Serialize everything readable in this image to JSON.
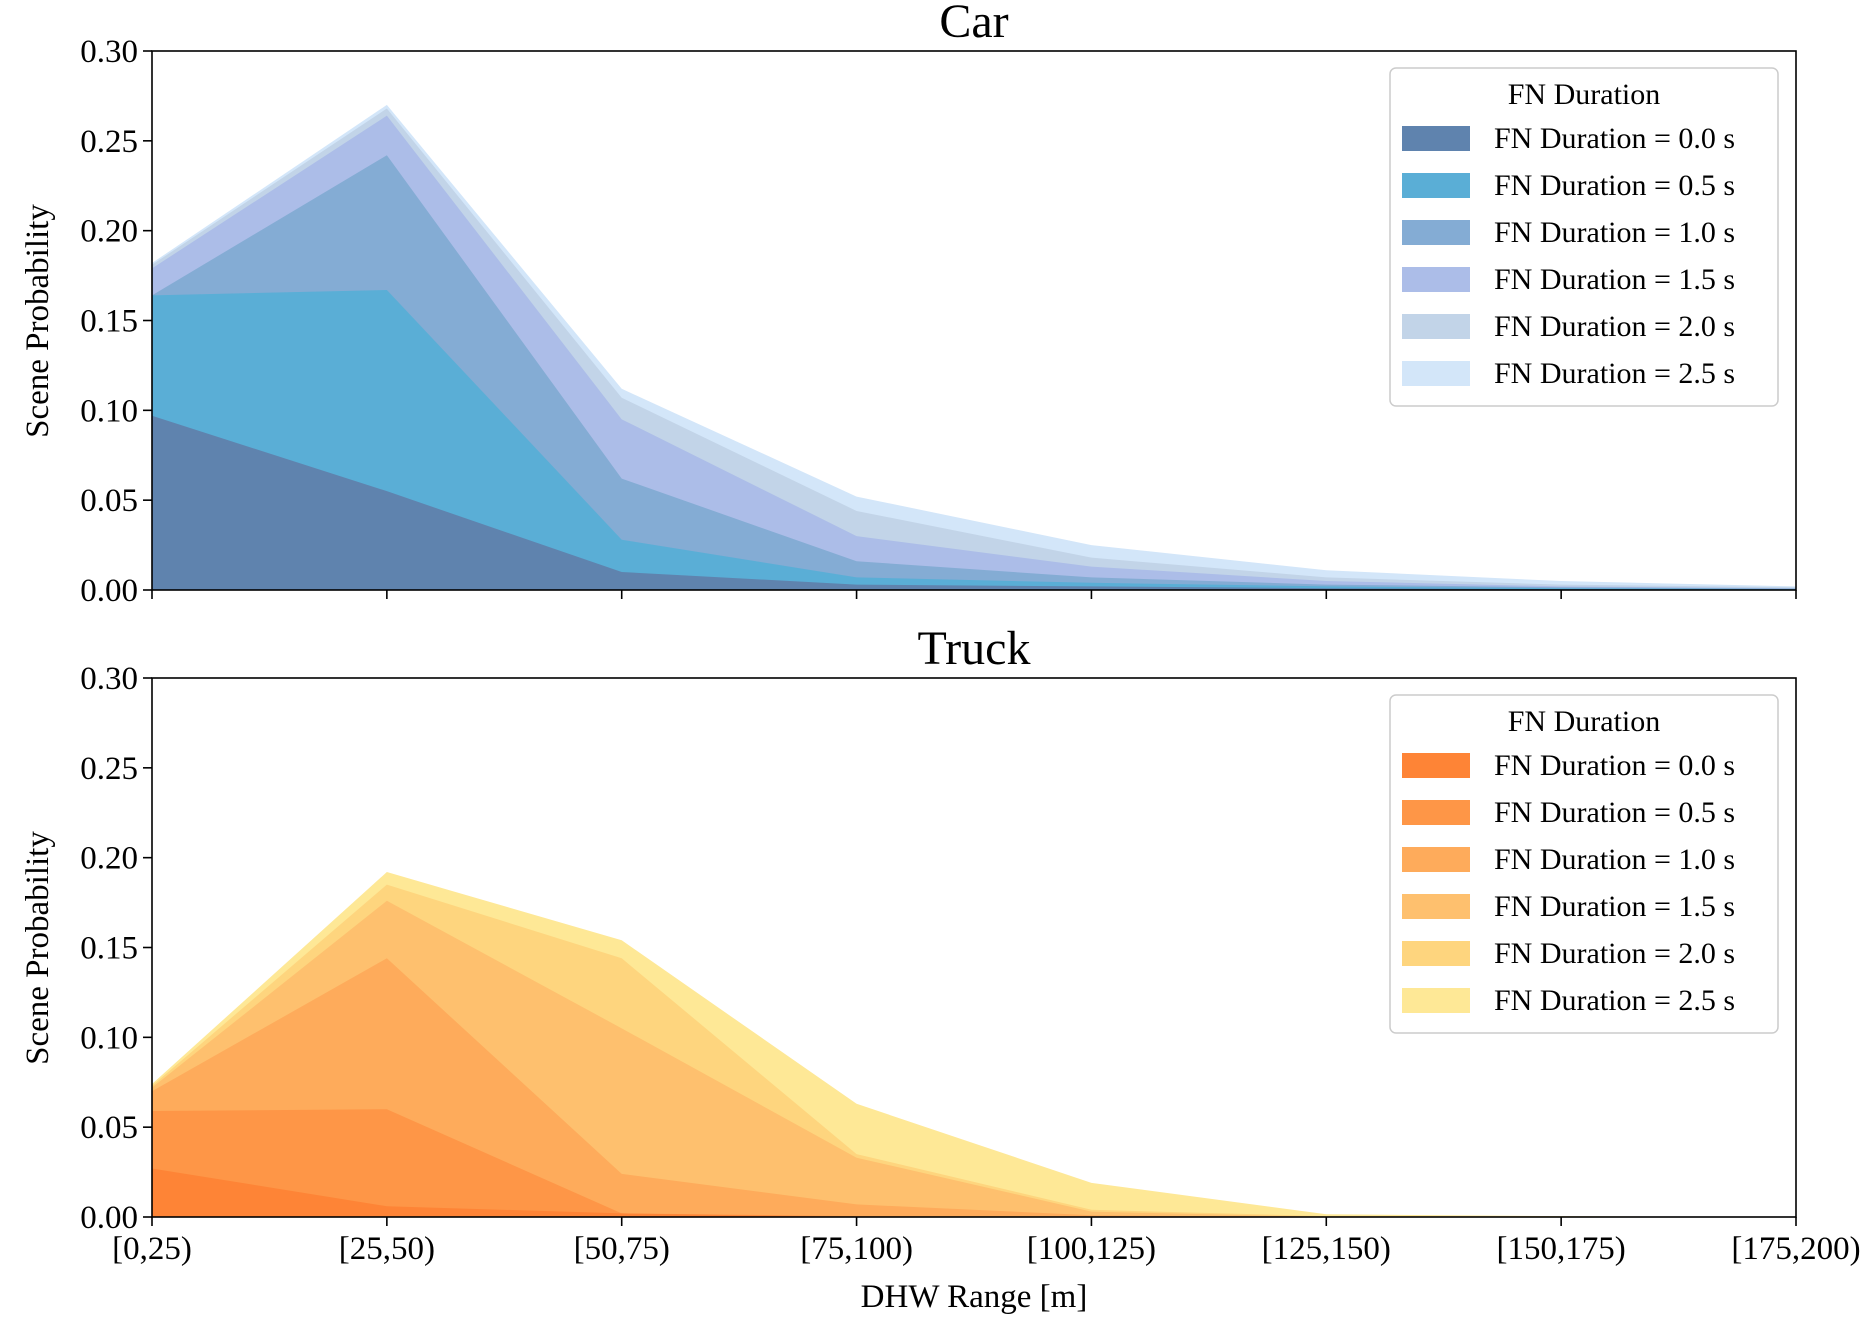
{
  "chart_data": [
    {
      "type": "area",
      "stacking": "overlapping (cumulative)",
      "title": "Car",
      "xlabel": "",
      "ylabel": "Scene Probability",
      "ylim": [
        0,
        0.3
      ],
      "yticks": [
        "0.00",
        "0.05",
        "0.10",
        "0.15",
        "0.20",
        "0.25",
        "0.30"
      ],
      "categories": [
        "[0,25)",
        "[25,50)",
        "[50,75)",
        "[75,100)",
        "[100,125)",
        "[125,150)",
        "[150,175)",
        "[175,200)"
      ],
      "legend": {
        "title": "FN Duration",
        "position": "upper right"
      },
      "series": [
        {
          "name": "FN Duration = 0.0 s",
          "color": "#5f83ae",
          "values": [
            0.097,
            0.055,
            0.01,
            0.003,
            0.002,
            0.001,
            0.0005,
            0.0003
          ]
        },
        {
          "name": "FN Duration = 0.5 s",
          "color": "#5aaed6",
          "values": [
            0.164,
            0.167,
            0.028,
            0.007,
            0.004,
            0.002,
            0.001,
            0.0005
          ]
        },
        {
          "name": "FN Duration = 1.0 s",
          "color": "#84acd4",
          "values": [
            0.164,
            0.242,
            0.062,
            0.016,
            0.007,
            0.003,
            0.0015,
            0.0008
          ]
        },
        {
          "name": "FN Duration = 1.5 s",
          "color": "#acbde8",
          "values": [
            0.179,
            0.264,
            0.095,
            0.03,
            0.013,
            0.005,
            0.002,
            0.001
          ]
        },
        {
          "name": "FN Duration = 2.0 s",
          "color": "#c2d4e8",
          "values": [
            0.181,
            0.268,
            0.107,
            0.044,
            0.018,
            0.007,
            0.003,
            0.0015
          ]
        },
        {
          "name": "FN Duration = 2.5 s",
          "color": "#d3e6f9",
          "values": [
            0.182,
            0.27,
            0.112,
            0.052,
            0.025,
            0.011,
            0.005,
            0.002
          ]
        }
      ]
    },
    {
      "type": "area",
      "stacking": "overlapping (cumulative)",
      "title": "Truck",
      "xlabel": "DHW Range [m]",
      "ylabel": "Scene Probability",
      "ylim": [
        0,
        0.3
      ],
      "yticks": [
        "0.00",
        "0.05",
        "0.10",
        "0.15",
        "0.20",
        "0.25",
        "0.30"
      ],
      "categories": [
        "[0,25)",
        "[25,50)",
        "[50,75)",
        "[75,100)",
        "[100,125)",
        "[125,150)",
        "[150,175)",
        "[175,200)"
      ],
      "legend": {
        "title": "FN Duration",
        "position": "upper right"
      },
      "series": [
        {
          "name": "FN Duration = 0.0 s",
          "color": "#fe8436",
          "values": [
            0.027,
            0.006,
            0.002,
            0.0,
            0.0,
            0.0,
            0.0,
            0.0
          ]
        },
        {
          "name": "FN Duration = 0.5 s",
          "color": "#fe9647",
          "values": [
            0.059,
            0.06,
            0.002,
            0.0005,
            0.0,
            0.0,
            0.0,
            0.0
          ]
        },
        {
          "name": "FN Duration = 1.0 s",
          "color": "#feab5b",
          "values": [
            0.07,
            0.144,
            0.024,
            0.007,
            0.001,
            0.0,
            0.0,
            0.0
          ]
        },
        {
          "name": "FN Duration = 1.5 s",
          "color": "#fec06e",
          "values": [
            0.072,
            0.176,
            0.105,
            0.033,
            0.003,
            0.0,
            0.0,
            0.0
          ]
        },
        {
          "name": "FN Duration = 2.0 s",
          "color": "#fed57e",
          "values": [
            0.073,
            0.185,
            0.144,
            0.035,
            0.004,
            0.0005,
            0.0,
            0.0
          ]
        },
        {
          "name": "FN Duration = 2.5 s",
          "color": "#fee896",
          "values": [
            0.074,
            0.192,
            0.154,
            0.063,
            0.019,
            0.0015,
            0.0005,
            0.0
          ]
        }
      ]
    }
  ]
}
